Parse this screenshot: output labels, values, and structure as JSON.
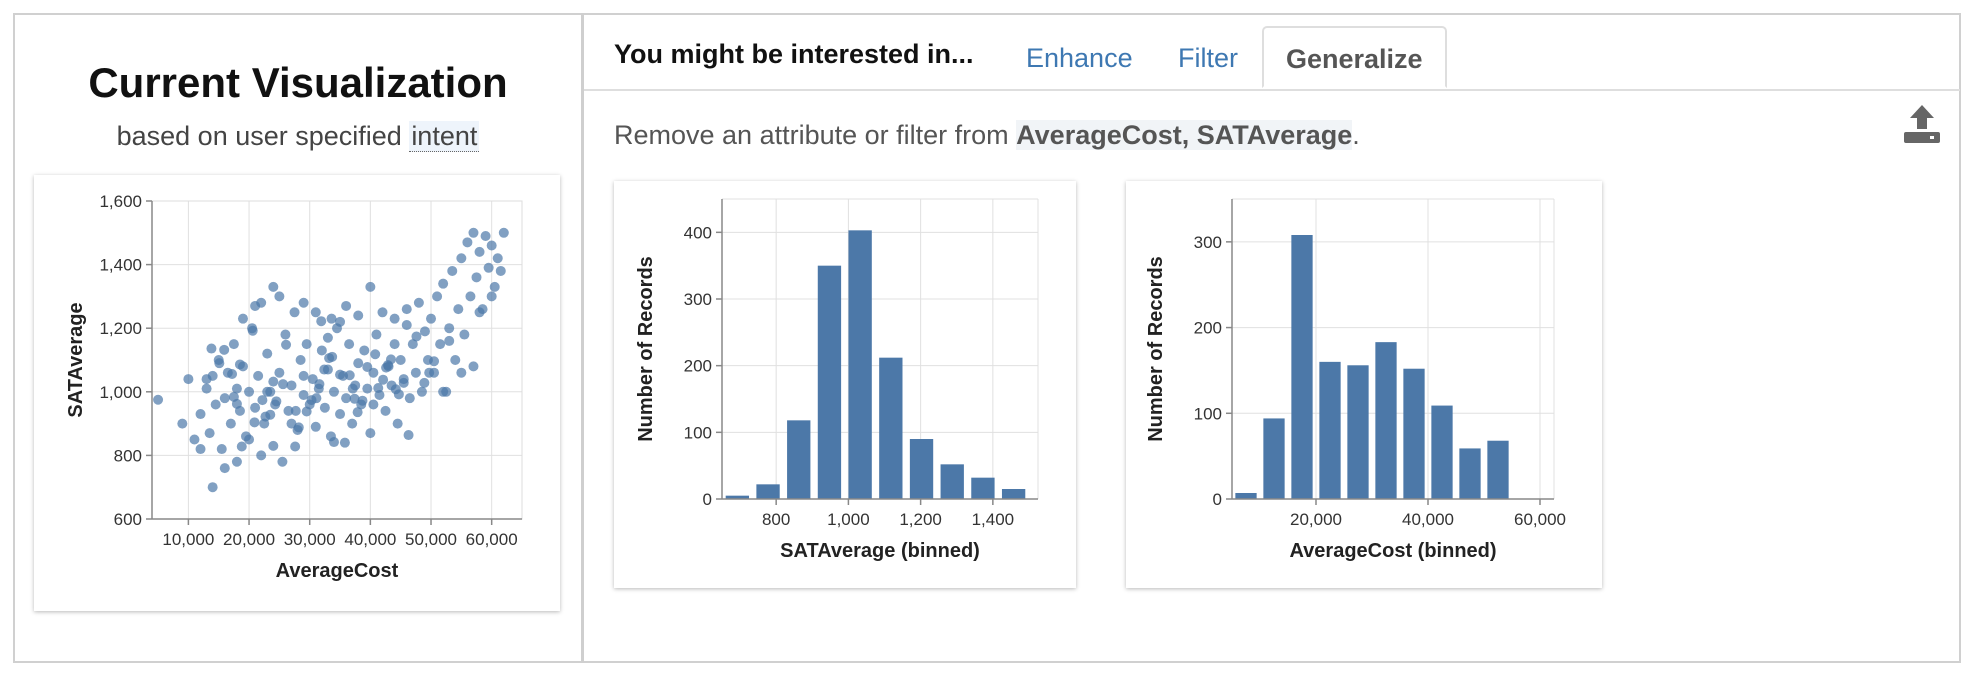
{
  "left": {
    "title": "Current Visualization",
    "subtitle_prefix": "based on user specified",
    "subtitle_intent": "intent"
  },
  "right": {
    "prompt": "You might be interested in...",
    "tabs": [
      {
        "label": "Enhance",
        "active": false
      },
      {
        "label": "Filter",
        "active": false
      },
      {
        "label": "Generalize",
        "active": true
      }
    ],
    "description_prefix": "Remove an attribute or filter from",
    "description_attrs": "AverageCost, SATAverage",
    "description_suffix": ".",
    "export_icon": "upload-icon"
  },
  "colors": {
    "mark": "#4c78a8",
    "tab_link": "#3e78b2",
    "grid": "#e0e0e0"
  },
  "chart_data": [
    {
      "type": "scatter",
      "title": "",
      "xlabel": "AverageCost",
      "ylabel": "SATAverage",
      "xlim": [
        4000,
        65000
      ],
      "ylim": [
        600,
        1600
      ],
      "xticks": [
        10000,
        20000,
        30000,
        40000,
        50000,
        60000
      ],
      "xtick_labels": [
        "10,000",
        "20,000",
        "30,000",
        "40,000",
        "50,000",
        "60,000"
      ],
      "yticks": [
        600,
        800,
        1000,
        1200,
        1400,
        1600
      ],
      "ytick_labels": [
        "600",
        "800",
        "1,000",
        "1,200",
        "1,400",
        "1,600"
      ],
      "grid": true,
      "points": [
        [
          5000,
          975
        ],
        [
          9000,
          900
        ],
        [
          10000,
          1040
        ],
        [
          11000,
          850
        ],
        [
          12000,
          930
        ],
        [
          13000,
          1010
        ],
        [
          13500,
          870
        ],
        [
          14000,
          1050
        ],
        [
          14500,
          960
        ],
        [
          15000,
          1100
        ],
        [
          15500,
          820
        ],
        [
          16000,
          980
        ],
        [
          16500,
          1060
        ],
        [
          17000,
          900
        ],
        [
          17500,
          1150
        ],
        [
          18000,
          1010
        ],
        [
          18500,
          940
        ],
        [
          19000,
          1080
        ],
        [
          19500,
          860
        ],
        [
          20000,
          1000
        ],
        [
          20500,
          1200
        ],
        [
          21000,
          950
        ],
        [
          21500,
          1050
        ],
        [
          22000,
          1280
        ],
        [
          22500,
          900
        ],
        [
          23000,
          1120
        ],
        [
          23500,
          1000
        ],
        [
          24000,
          1330
        ],
        [
          24500,
          970
        ],
        [
          25000,
          1060
        ],
        [
          25500,
          780
        ],
        [
          26000,
          1180
        ],
        [
          26500,
          940
        ],
        [
          27000,
          1020
        ],
        [
          27500,
          1250
        ],
        [
          28000,
          880
        ],
        [
          28500,
          1100
        ],
        [
          29000,
          990
        ],
        [
          29500,
          1150
        ],
        [
          30000,
          960
        ],
        [
          30500,
          1040
        ],
        [
          31000,
          890
        ],
        [
          31500,
          1010
        ],
        [
          32000,
          1130
        ],
        [
          32500,
          950
        ],
        [
          33000,
          1070
        ],
        [
          33500,
          860
        ],
        [
          34000,
          1000
        ],
        [
          34500,
          1200
        ],
        [
          35000,
          930
        ],
        [
          35500,
          1050
        ],
        [
          36000,
          980
        ],
        [
          36500,
          1150
        ],
        [
          37000,
          900
        ],
        [
          37500,
          1020
        ],
        [
          38000,
          1090
        ],
        [
          38500,
          960
        ],
        [
          39000,
          1130
        ],
        [
          39500,
          1010
        ],
        [
          40000,
          870
        ],
        [
          40500,
          1060
        ],
        [
          41000,
          1180
        ],
        [
          41500,
          990
        ],
        [
          42000,
          1250
        ],
        [
          42500,
          940
        ],
        [
          43000,
          1080
        ],
        [
          43500,
          1020
        ],
        [
          44000,
          1150
        ],
        [
          44500,
          900
        ],
        [
          45000,
          1100
        ],
        [
          45500,
          1040
        ],
        [
          46000,
          1210
        ],
        [
          46500,
          980
        ],
        [
          47000,
          1150
        ],
        [
          47500,
          1060
        ],
        [
          48000,
          1280
        ],
        [
          48500,
          1000
        ],
        [
          49000,
          1190
        ],
        [
          49500,
          1100
        ],
        [
          50000,
          1230
        ],
        [
          50500,
          1060
        ],
        [
          51000,
          1300
        ],
        [
          51500,
          1150
        ],
        [
          52000,
          1340
        ],
        [
          52500,
          1000
        ],
        [
          53000,
          1200
        ],
        [
          53500,
          1380
        ],
        [
          54000,
          1100
        ],
        [
          54500,
          1260
        ],
        [
          55000,
          1420
        ],
        [
          55500,
          1180
        ],
        [
          56000,
          1470
        ],
        [
          56500,
          1300
        ],
        [
          57000,
          1500
        ],
        [
          57500,
          1360
        ],
        [
          58000,
          1440
        ],
        [
          58500,
          1260
        ],
        [
          59000,
          1490
        ],
        [
          59500,
          1390
        ],
        [
          60000,
          1460
        ],
        [
          60500,
          1330
        ],
        [
          61000,
          1420
        ],
        [
          61500,
          1380
        ],
        [
          62000,
          1500
        ],
        [
          57000,
          1080
        ],
        [
          58000,
          1250
        ],
        [
          55000,
          1060
        ],
        [
          52000,
          1000
        ],
        [
          53000,
          1160
        ],
        [
          60000,
          1300
        ],
        [
          18000,
          780
        ],
        [
          20000,
          850
        ],
        [
          22000,
          800
        ],
        [
          16000,
          760
        ],
        [
          14000,
          700
        ],
        [
          24000,
          830
        ],
        [
          12000,
          820
        ],
        [
          27000,
          900
        ],
        [
          21000,
          1270
        ],
        [
          19000,
          1230
        ],
        [
          25000,
          1300
        ],
        [
          29000,
          1280
        ],
        [
          31000,
          1250
        ],
        [
          35000,
          1220
        ],
        [
          38000,
          1240
        ],
        [
          44000,
          1230
        ],
        [
          46000,
          1260
        ],
        [
          40000,
          1330
        ],
        [
          33000,
          1170
        ],
        [
          36000,
          1270
        ]
      ]
    },
    {
      "type": "bar",
      "title": "",
      "xlabel": "SATAverage (binned)",
      "ylabel": "Number of Records",
      "bin_start": 650,
      "bin_width": 85,
      "values": [
        5,
        22,
        118,
        350,
        403,
        212,
        90,
        52,
        32,
        15
      ],
      "xlim": [
        650,
        1525
      ],
      "ylim": [
        0,
        450
      ],
      "xticks": [
        800,
        1000,
        1200,
        1400
      ],
      "xtick_labels": [
        "800",
        "1,000",
        "1,200",
        "1,400"
      ],
      "yticks": [
        0,
        100,
        200,
        300,
        400
      ],
      "ytick_labels": [
        "0",
        "100",
        "200",
        "300",
        "400"
      ],
      "grid": true
    },
    {
      "type": "bar",
      "title": "",
      "xlabel": "AverageCost (binned)",
      "ylabel": "Number of Records",
      "bin_start": 5000,
      "bin_width": 5000,
      "values": [
        7,
        94,
        308,
        160,
        156,
        183,
        152,
        109,
        59,
        68
      ],
      "xlim": [
        5000,
        62500
      ],
      "ylim": [
        0,
        350
      ],
      "xticks": [
        20000,
        40000,
        60000
      ],
      "xtick_labels": [
        "20,000",
        "40,000",
        "60,000"
      ],
      "yticks": [
        0,
        100,
        200,
        300
      ],
      "ytick_labels": [
        "0",
        "100",
        "200",
        "300"
      ],
      "grid": true
    }
  ]
}
